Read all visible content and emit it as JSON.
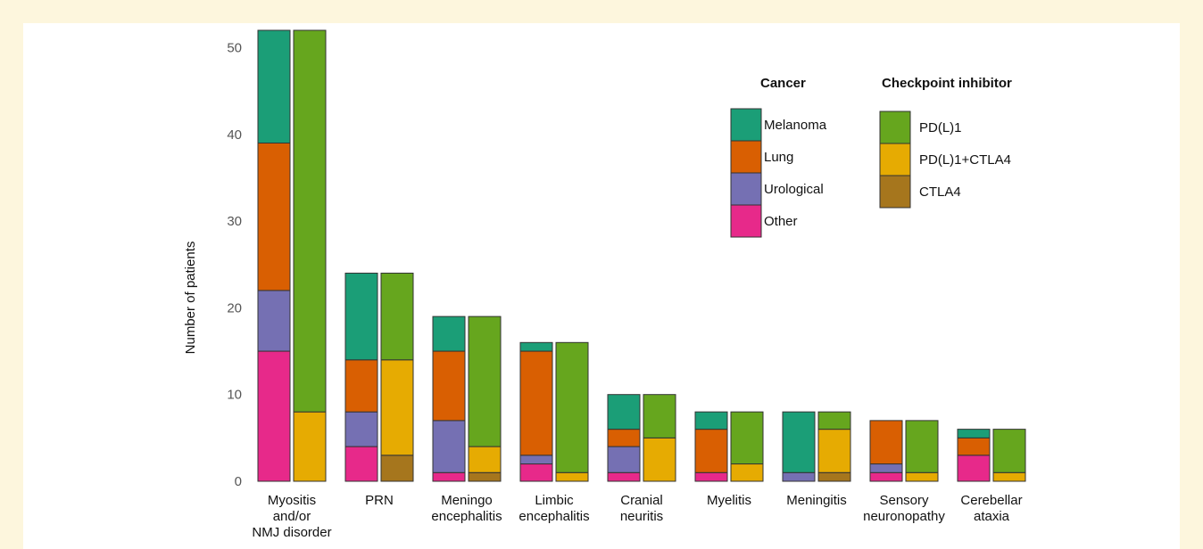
{
  "colors": {
    "melanoma": "#1b9e77",
    "lung": "#d95f02",
    "urological": "#7570b3",
    "other": "#e7298a",
    "pdl1": "#66a61e",
    "pdl1_ctla4": "#e6ab02",
    "ctla4": "#a6761d"
  },
  "chart_data": {
    "type": "bar",
    "stacked": true,
    "grouped": true,
    "title": "",
    "xlabel": "",
    "ylabel": "Number of patients",
    "ylim": [
      0,
      52
    ],
    "yticks": [
      0,
      10,
      20,
      30,
      40,
      50
    ],
    "grid": false,
    "legend_placement": "top-right",
    "categories": [
      "Myositis and/or NMJ disorder",
      "PRN",
      "Meningo encephalitis",
      "Limbic encephalitis",
      "Cranial neuritis",
      "Myelitis",
      "Meningitis",
      "Sensory neuronopathy",
      "Cerebellar ataxia"
    ],
    "category_lines": [
      [
        "Myositis",
        "and/or",
        "NMJ disorder"
      ],
      [
        "PRN"
      ],
      [
        "Meningo",
        "encephalitis"
      ],
      [
        "Limbic",
        "encephalitis"
      ],
      [
        "Cranial",
        "neuritis"
      ],
      [
        "Myelitis"
      ],
      [
        "Meningitis"
      ],
      [
        "Sensory",
        "neuronopathy"
      ],
      [
        "Cerebellar",
        "ataxia"
      ]
    ],
    "groups": [
      {
        "name": "Cancer",
        "series": [
          {
            "name": "Other",
            "color_key": "other",
            "values": [
              15,
              4,
              1,
              2,
              1,
              1,
              0,
              1,
              3
            ]
          },
          {
            "name": "Urological",
            "color_key": "urological",
            "values": [
              7,
              4,
              6,
              1,
              3,
              0,
              1,
              1,
              0
            ]
          },
          {
            "name": "Lung",
            "color_key": "lung",
            "values": [
              17,
              6,
              8,
              12,
              2,
              5,
              0,
              5,
              2
            ]
          },
          {
            "name": "Melanoma",
            "color_key": "melanoma",
            "values": [
              13,
              10,
              4,
              1,
              4,
              2,
              7,
              0,
              1
            ]
          }
        ]
      },
      {
        "name": "Checkpoint inhibitor",
        "series": [
          {
            "name": "CTLA4",
            "color_key": "ctla4",
            "values": [
              0,
              3,
              1,
              0,
              0,
              0,
              1,
              0,
              0
            ]
          },
          {
            "name": "PD(L)1+CTLA4",
            "color_key": "pdl1_ctla4",
            "values": [
              8,
              11,
              3,
              1,
              5,
              2,
              5,
              1,
              1
            ]
          },
          {
            "name": "PD(L)1",
            "color_key": "pdl1",
            "values": [
              44,
              10,
              15,
              15,
              5,
              6,
              2,
              6,
              5
            ]
          }
        ]
      }
    ]
  },
  "legend": {
    "cancer_title": "Cancer",
    "cancer_items": [
      {
        "label": "Melanoma",
        "color_key": "melanoma"
      },
      {
        "label": "Lung",
        "color_key": "lung"
      },
      {
        "label": "Urological",
        "color_key": "urological"
      },
      {
        "label": "Other",
        "color_key": "other"
      }
    ],
    "checkpoint_title": "Checkpoint inhibitor",
    "checkpoint_items": [
      {
        "label": "PD(L)1",
        "color_key": "pdl1"
      },
      {
        "label": "PD(L)1+CTLA4",
        "color_key": "pdl1_ctla4"
      },
      {
        "label": "CTLA4",
        "color_key": "ctla4"
      }
    ]
  }
}
